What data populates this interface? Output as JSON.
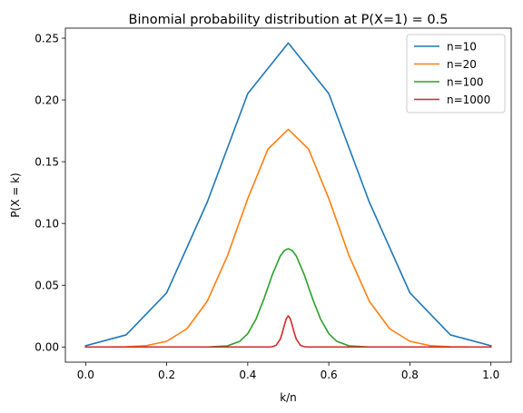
{
  "chart_data": {
    "type": "line",
    "title": "Binomial probability distribution at P(X=1) = 0.5",
    "xlabel": "k/n",
    "ylabel": "P(X = k)",
    "xlim": [
      -0.05,
      1.05
    ],
    "ylim": [
      -0.0123,
      0.2581
    ],
    "xticks": [
      0.0,
      0.2,
      0.4,
      0.6,
      0.8,
      1.0
    ],
    "xtick_labels": [
      "0.0",
      "0.2",
      "0.4",
      "0.6",
      "0.8",
      "1.0"
    ],
    "yticks": [
      0.0,
      0.05,
      0.1,
      0.15,
      0.2,
      0.25
    ],
    "ytick_labels": [
      "0.00",
      "0.05",
      "0.10",
      "0.15",
      "0.20",
      "0.25"
    ],
    "grid": false,
    "legend_position": "top-right",
    "series": [
      {
        "name": "n=10",
        "color": "#1f77b4",
        "x": [
          0.0,
          0.1,
          0.2,
          0.3,
          0.4,
          0.5,
          0.6,
          0.7,
          0.8,
          0.9,
          1.0
        ],
        "y": [
          0.001,
          0.0098,
          0.0439,
          0.1172,
          0.2051,
          0.2461,
          0.2051,
          0.1172,
          0.0439,
          0.0098,
          0.001
        ]
      },
      {
        "name": "n=20",
        "color": "#ff7f0e",
        "x": [
          0.0,
          0.05,
          0.1,
          0.15,
          0.2,
          0.25,
          0.3,
          0.35,
          0.4,
          0.45,
          0.5,
          0.55,
          0.6,
          0.65,
          0.7,
          0.75,
          0.8,
          0.85,
          0.9,
          0.95,
          1.0
        ],
        "y": [
          0.0,
          0.0,
          0.0002,
          0.0011,
          0.0046,
          0.0148,
          0.037,
          0.0739,
          0.1201,
          0.1602,
          0.1762,
          0.1602,
          0.1201,
          0.0739,
          0.037,
          0.0148,
          0.0046,
          0.0011,
          0.0002,
          0.0,
          0.0
        ]
      },
      {
        "name": "n=100",
        "color": "#2ca02c",
        "x": [
          0.0,
          0.3,
          0.35,
          0.38,
          0.4,
          0.42,
          0.44,
          0.46,
          0.48,
          0.49,
          0.5,
          0.51,
          0.52,
          0.54,
          0.56,
          0.58,
          0.6,
          0.62,
          0.65,
          0.7,
          1.0
        ],
        "y": [
          0.0,
          0.0,
          0.0009,
          0.0045,
          0.0108,
          0.0223,
          0.039,
          0.058,
          0.0735,
          0.078,
          0.0796,
          0.078,
          0.0735,
          0.058,
          0.039,
          0.0223,
          0.0108,
          0.0045,
          0.0009,
          0.0,
          0.0
        ]
      },
      {
        "name": "n=1000",
        "color": "#d62728",
        "x": [
          0.0,
          0.45,
          0.46,
          0.47,
          0.48,
          0.485,
          0.49,
          0.495,
          0.5,
          0.505,
          0.51,
          0.515,
          0.52,
          0.53,
          0.54,
          0.55,
          1.0
        ],
        "y": [
          0.0,
          0.0,
          0.0002,
          0.0013,
          0.0062,
          0.0111,
          0.0173,
          0.0228,
          0.0252,
          0.0228,
          0.0173,
          0.0111,
          0.0062,
          0.0013,
          0.0002,
          0.0,
          0.0
        ]
      }
    ]
  }
}
